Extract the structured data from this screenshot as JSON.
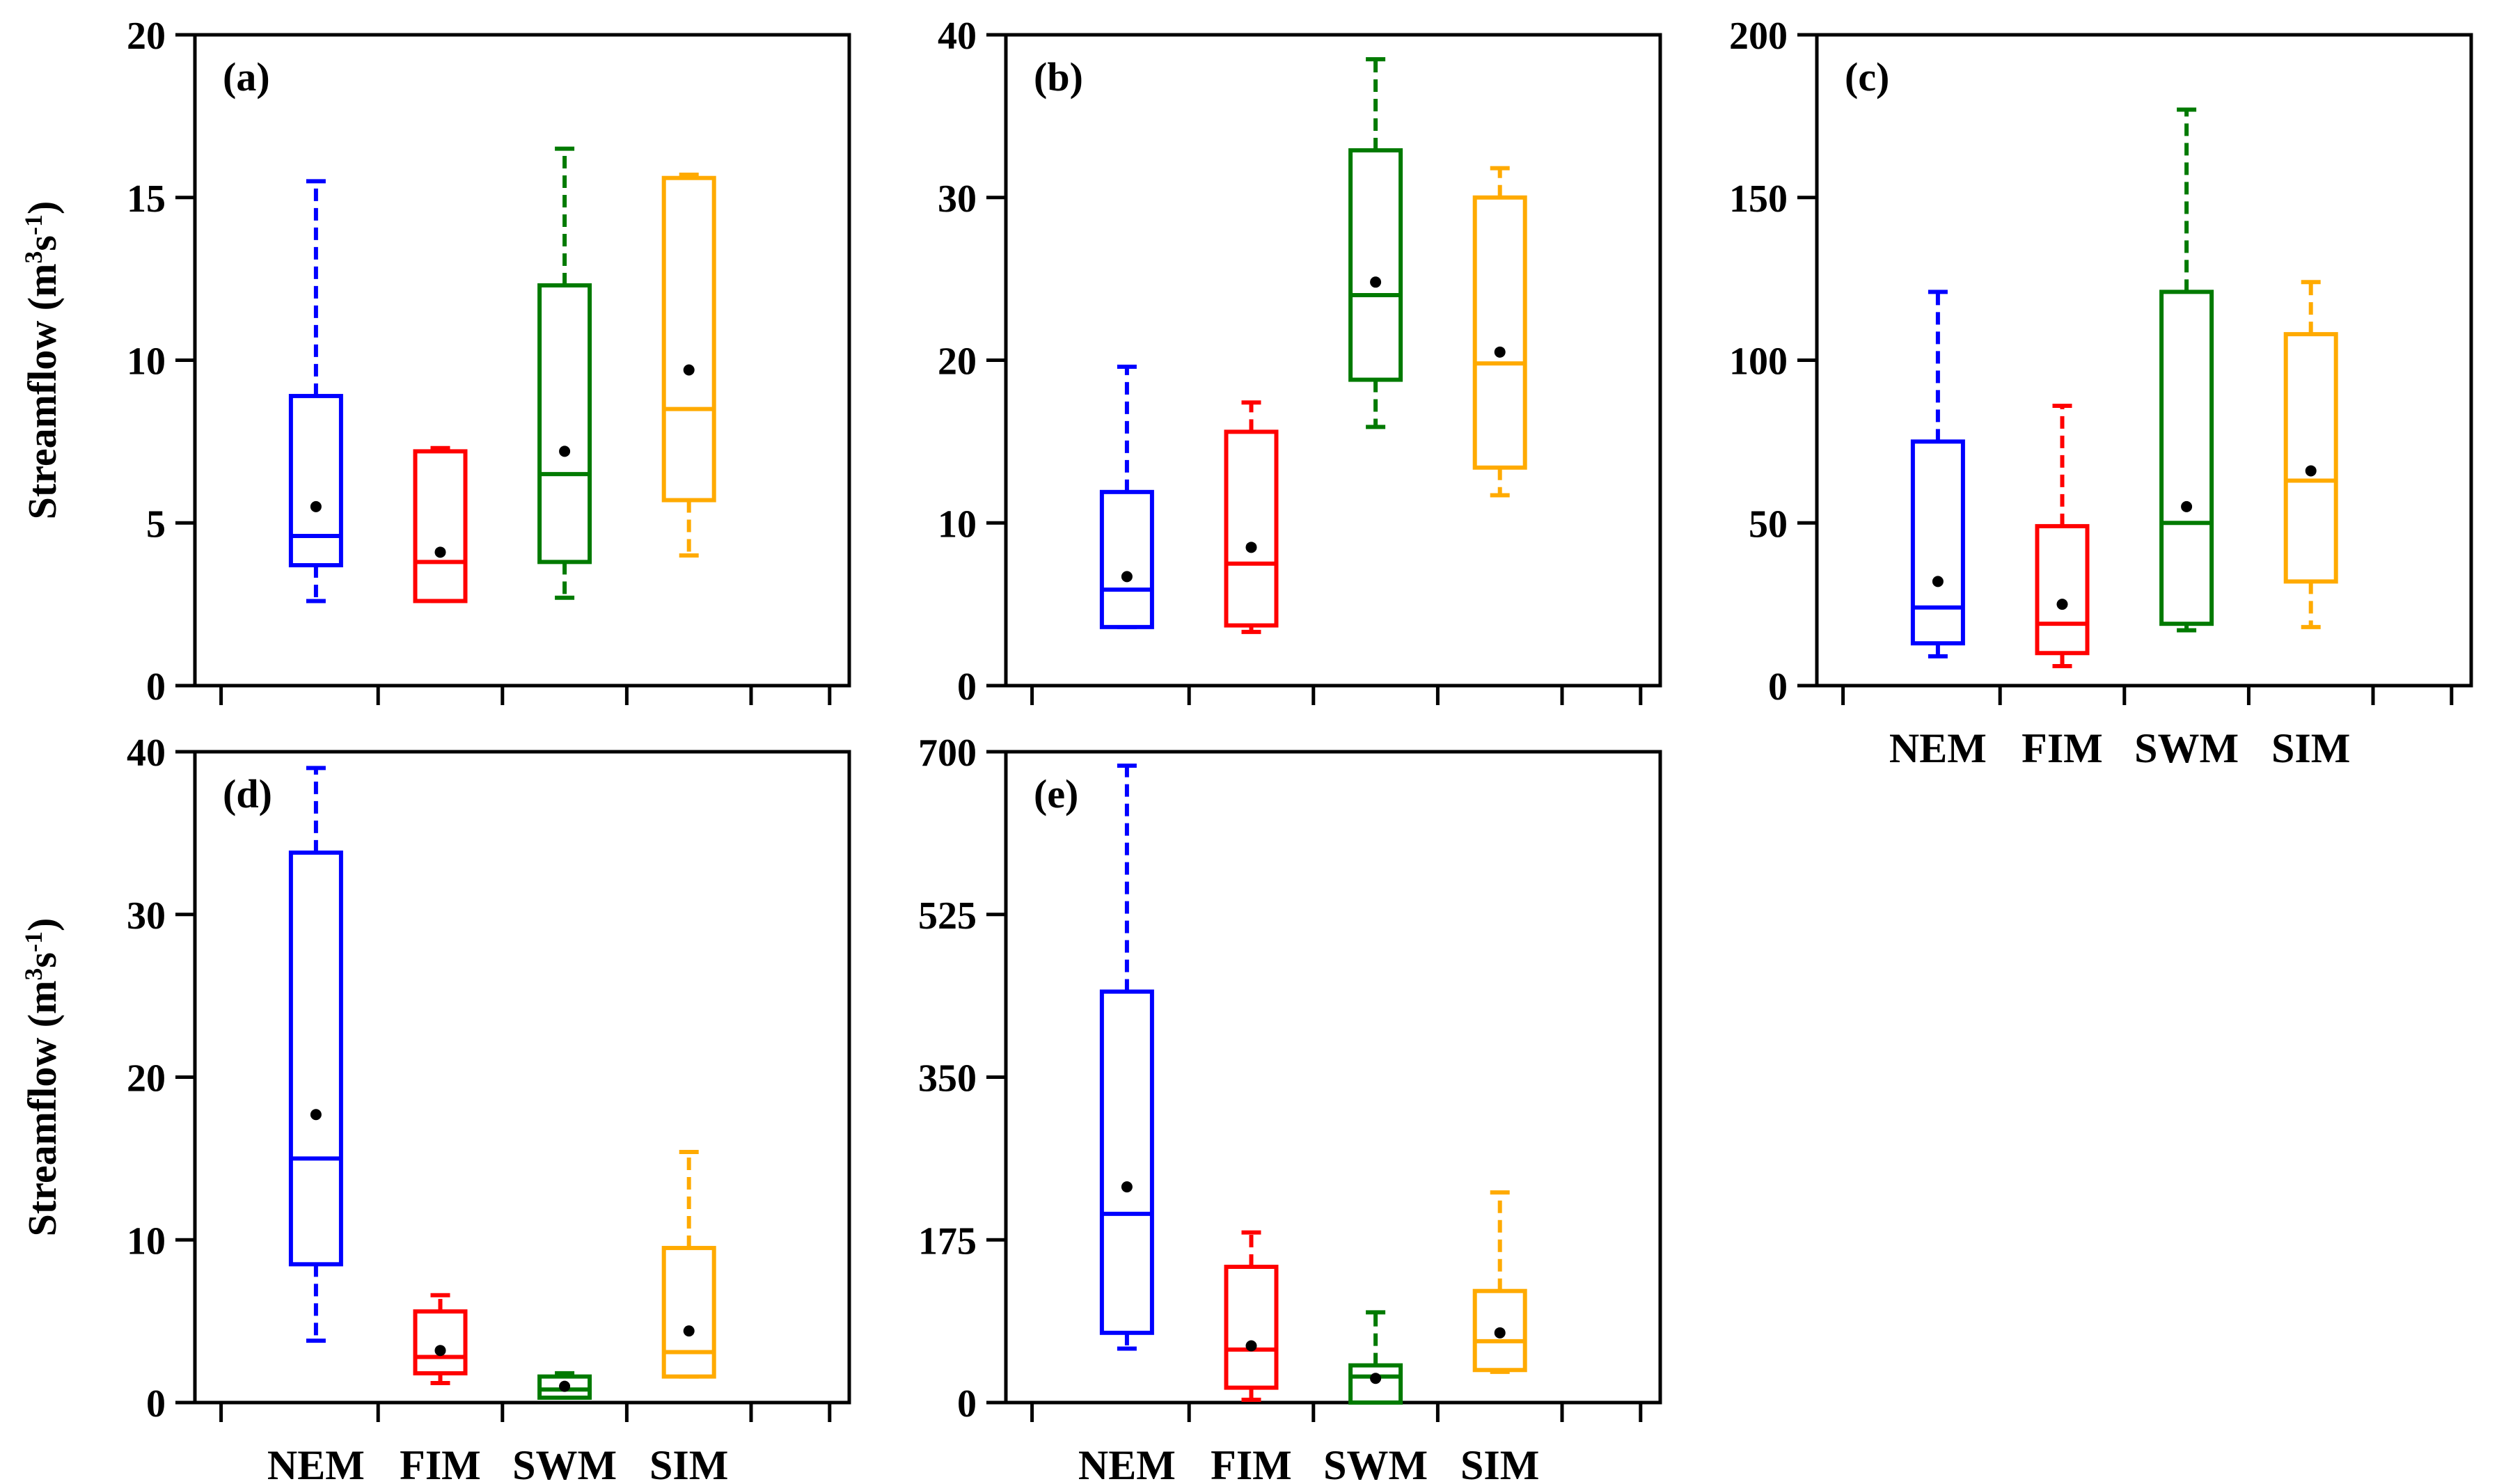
{
  "chart_data": {
    "type": "boxplot",
    "categories": [
      "NEM",
      "FIM",
      "SWM",
      "SIM"
    ],
    "category_colors": [
      "#0000ff",
      "#ff0000",
      "#007a00",
      "#ffaa00"
    ],
    "mean_marker_color": "#000000",
    "ylabel_main": "Streamflow (m",
    "ylabel_sup1": "3",
    "ylabel_mid": "s",
    "ylabel_sup2": "-1",
    "ylabel_end": ")",
    "panels": [
      {
        "label": "(a)",
        "ylim": [
          0,
          20
        ],
        "yticks": [
          "0",
          "5",
          "10",
          "15",
          "20"
        ],
        "boxes": [
          {
            "min": 2.6,
            "q1": 3.7,
            "median": 4.6,
            "q3": 8.9,
            "max": 15.5,
            "mean": 5.5
          },
          {
            "min": 2.6,
            "q1": 2.6,
            "median": 3.8,
            "q3": 7.2,
            "max": 7.3,
            "mean": 4.1
          },
          {
            "min": 2.7,
            "q1": 3.8,
            "median": 6.5,
            "q3": 12.3,
            "max": 16.5,
            "mean": 7.2
          },
          {
            "min": 4.0,
            "q1": 5.7,
            "median": 8.5,
            "q3": 15.6,
            "max": 15.7,
            "mean": 9.7
          }
        ]
      },
      {
        "label": "(b)",
        "ylim": [
          0,
          40
        ],
        "yticks": [
          "0",
          "10",
          "20",
          "30",
          "40"
        ],
        "boxes": [
          {
            "min": 3.6,
            "q1": 3.6,
            "median": 5.9,
            "q3": 11.9,
            "max": 19.6,
            "mean": 6.7
          },
          {
            "min": 3.3,
            "q1": 3.7,
            "median": 7.5,
            "q3": 15.6,
            "max": 17.4,
            "mean": 8.5
          },
          {
            "min": 15.9,
            "q1": 18.8,
            "median": 24.0,
            "q3": 32.9,
            "max": 38.5,
            "mean": 24.8
          },
          {
            "min": 11.7,
            "q1": 13.4,
            "median": 19.8,
            "q3": 30.0,
            "max": 31.8,
            "mean": 20.5
          }
        ]
      },
      {
        "label": "(c)",
        "ylim": [
          0,
          200
        ],
        "yticks": [
          "0",
          "50",
          "100",
          "150",
          "200"
        ],
        "boxes": [
          {
            "min": 9,
            "q1": 13,
            "median": 24,
            "q3": 75,
            "max": 121,
            "mean": 32
          },
          {
            "min": 6,
            "q1": 10,
            "median": 19,
            "q3": 49,
            "max": 86,
            "mean": 25
          },
          {
            "min": 17,
            "q1": 19,
            "median": 50,
            "q3": 121,
            "max": 177,
            "mean": 55
          },
          {
            "min": 18,
            "q1": 32,
            "median": 63,
            "q3": 108,
            "max": 124,
            "mean": 66
          }
        ]
      },
      {
        "label": "(d)",
        "ylim": [
          0,
          40
        ],
        "yticks": [
          "0",
          "10",
          "20",
          "30",
          "40"
        ],
        "boxes": [
          {
            "min": 3.8,
            "q1": 8.5,
            "median": 15.0,
            "q3": 33.8,
            "max": 39.0,
            "mean": 17.7
          },
          {
            "min": 1.2,
            "q1": 1.8,
            "median": 2.8,
            "q3": 5.6,
            "max": 6.6,
            "mean": 3.2
          },
          {
            "min": 0.3,
            "q1": 0.3,
            "median": 0.8,
            "q3": 1.6,
            "max": 1.8,
            "mean": 1.0
          },
          {
            "min": 1.6,
            "q1": 1.6,
            "median": 3.1,
            "q3": 9.5,
            "max": 15.4,
            "mean": 4.4
          }
        ]
      },
      {
        "label": "(e)",
        "ylim": [
          0,
          700
        ],
        "yticks": [
          "0",
          "175",
          "350",
          "525",
          "700"
        ],
        "boxes": [
          {
            "min": 58,
            "q1": 75,
            "median": 203,
            "q3": 442,
            "max": 685,
            "mean": 232
          },
          {
            "min": 3,
            "q1": 16,
            "median": 57,
            "q3": 146,
            "max": 183,
            "mean": 61
          },
          {
            "min": 0,
            "q1": 0,
            "median": 28,
            "q3": 40,
            "max": 97,
            "mean": 26
          },
          {
            "min": 33,
            "q1": 35,
            "median": 66,
            "q3": 120,
            "max": 226,
            "mean": 75
          }
        ]
      }
    ]
  }
}
